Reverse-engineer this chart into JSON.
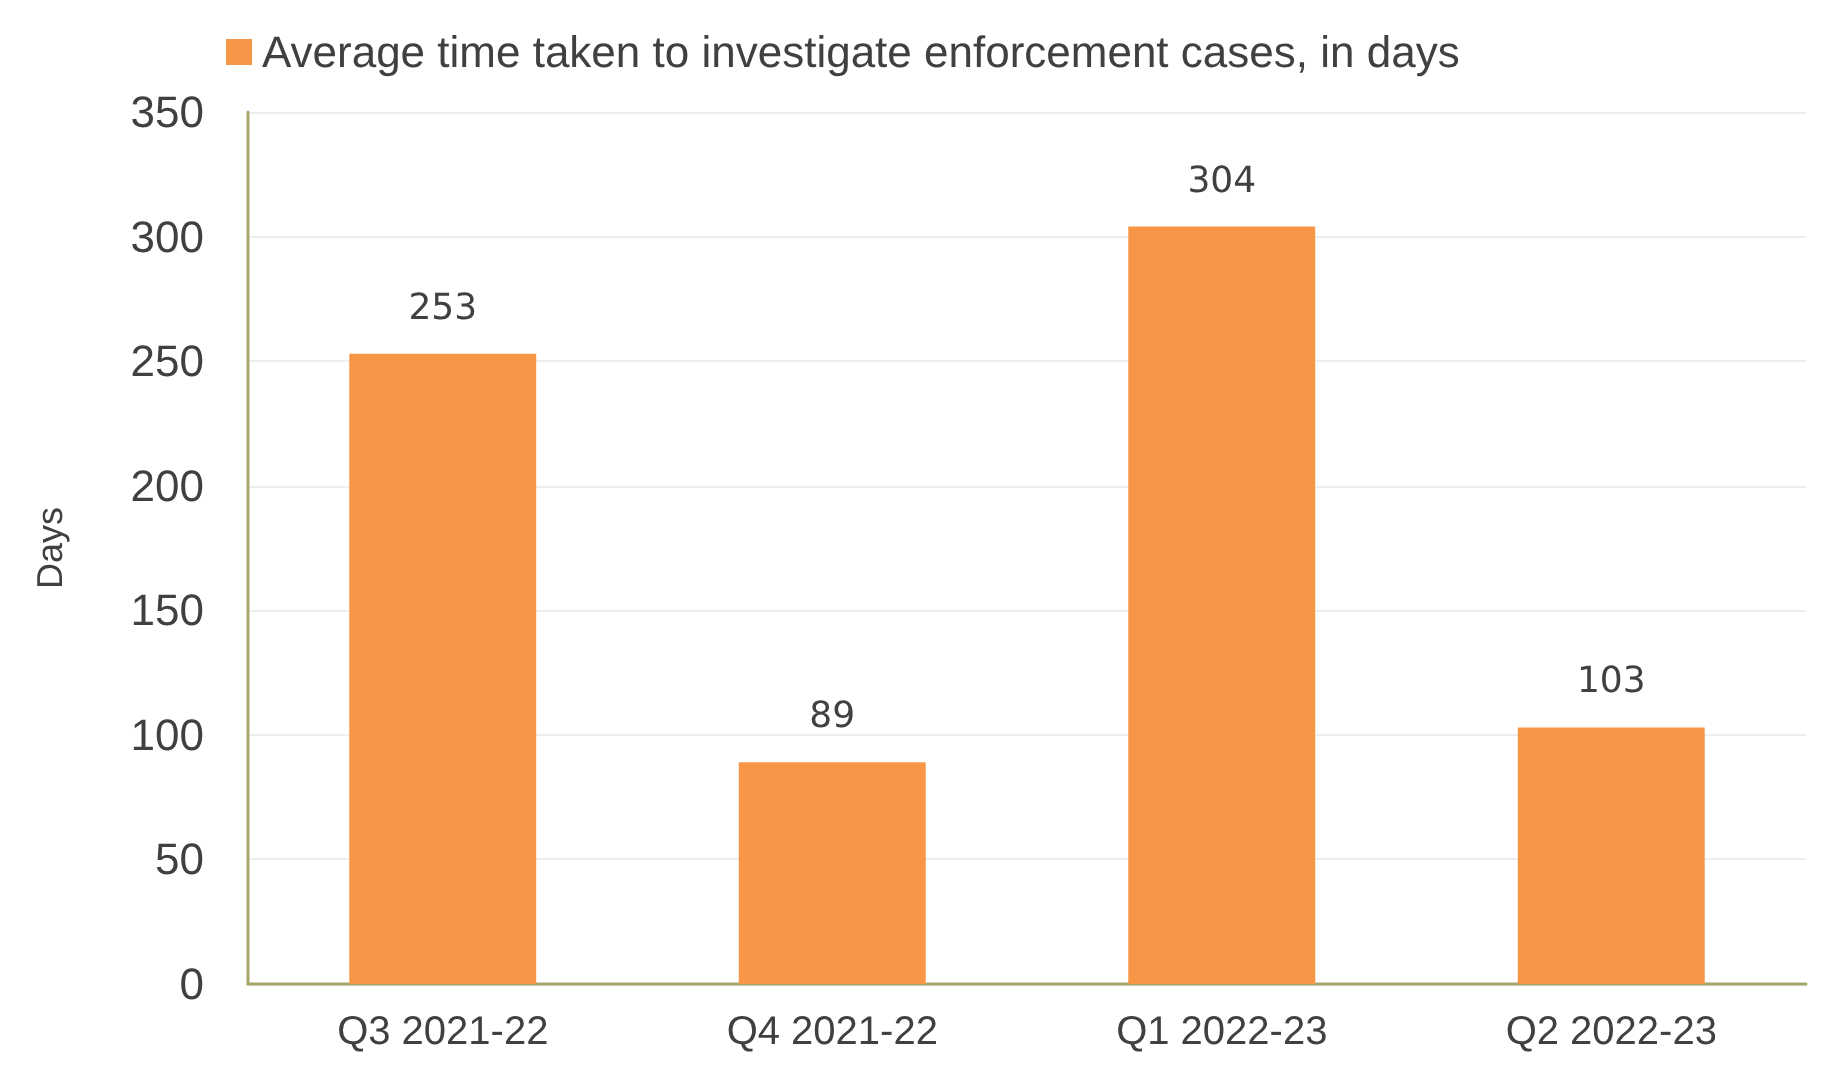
{
  "chart_data": {
    "type": "bar",
    "ylabel": "Days",
    "categories": [
      "Q3 2021-22",
      "Q4 2021-22",
      "Q1 2022-23",
      "Q2 2022-23"
    ],
    "series": [
      {
        "name": "Average time taken to investigate enforcement cases, in days",
        "color": "#f79646",
        "values": [
          253,
          89,
          304,
          103
        ]
      }
    ],
    "ylim": [
      0,
      350
    ],
    "yticks": [
      0,
      50,
      100,
      150,
      200,
      250,
      300,
      350
    ],
    "grid": "y",
    "legend": "top",
    "data_labels": true
  }
}
